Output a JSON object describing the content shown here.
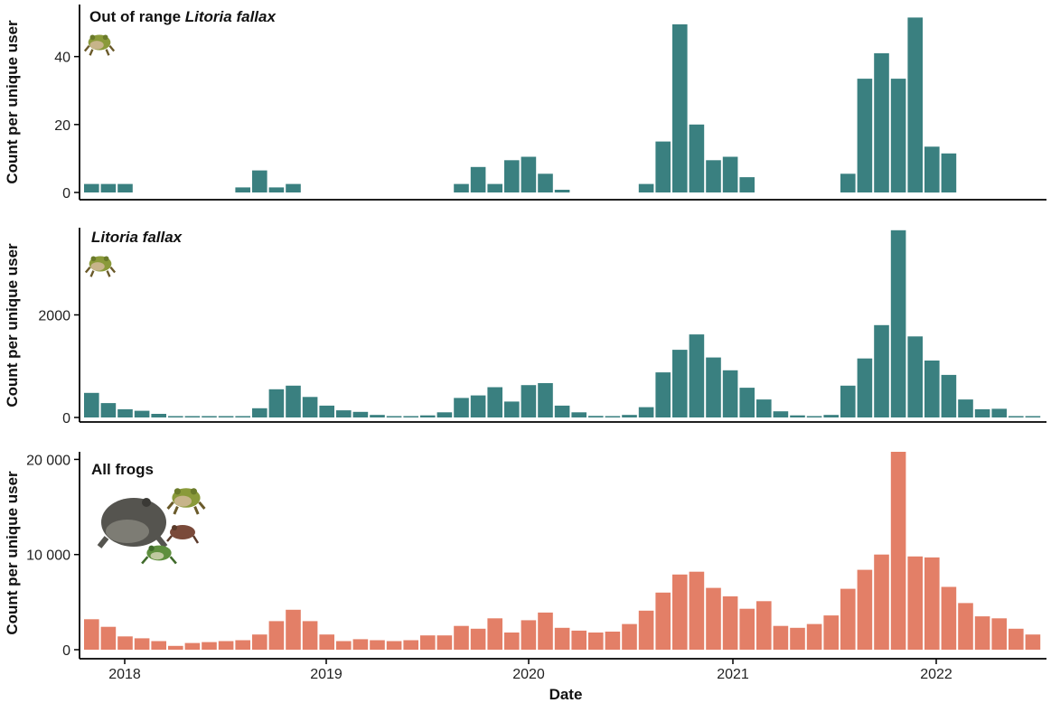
{
  "chart_data": [
    {
      "type": "bar",
      "title_prefix": "Out of range ",
      "title_italic": "Litoria fallax",
      "ylabel": "Count per unique user",
      "ylim": [
        0,
        54
      ],
      "yticks": [
        0,
        20,
        40
      ],
      "ytick_labels": [
        "0",
        "20",
        "40"
      ],
      "bar_color": "#3a8080",
      "icon": "frog-icon",
      "values": [
        2.5,
        2.5,
        2.5,
        0,
        0,
        0,
        0,
        0,
        0,
        1.5,
        6.5,
        1.5,
        2.5,
        0,
        0,
        0,
        0,
        0,
        0,
        0,
        0,
        0,
        2.5,
        7.5,
        2.5,
        9.5,
        10.5,
        5.5,
        0.8,
        0,
        0,
        0,
        0,
        2.5,
        15,
        49.5,
        20,
        9.5,
        10.5,
        4.5,
        0,
        0,
        0,
        0,
        0,
        5.5,
        33.5,
        41,
        33.5,
        51.5,
        13.5,
        11.5,
        0,
        0,
        0,
        0,
        0
      ]
    },
    {
      "type": "bar",
      "title_prefix": "",
      "title_italic": "Litoria fallax",
      "ylabel": "Count per unique user",
      "ylim": [
        0,
        3700
      ],
      "yticks": [
        0,
        2000
      ],
      "ytick_labels": [
        "0",
        "2000"
      ],
      "bar_color": "#3a8080",
      "icon": "frog-icon",
      "values": [
        480,
        280,
        160,
        130,
        70,
        10,
        10,
        10,
        10,
        20,
        180,
        550,
        620,
        400,
        230,
        140,
        110,
        50,
        20,
        20,
        40,
        100,
        380,
        430,
        590,
        310,
        630,
        670,
        230,
        100,
        30,
        20,
        50,
        200,
        880,
        1320,
        1620,
        1170,
        920,
        580,
        350,
        120,
        40,
        10,
        50,
        620,
        1150,
        1800,
        3650,
        1580,
        1110,
        830,
        350,
        160,
        170,
        10,
        10
      ]
    },
    {
      "type": "bar",
      "title_prefix": "All frogs",
      "title_italic": "",
      "ylabel": "Count per unique user",
      "ylim": [
        0,
        20800
      ],
      "yticks": [
        0,
        10000,
        20000
      ],
      "ytick_labels": [
        "0",
        "10 000",
        "20 000"
      ],
      "bar_color": "#e37f67",
      "icon": "frog-group-icon",
      "xlabel": "Date",
      "x_ticks": [
        "2018",
        "2019",
        "2020",
        "2021",
        "2022"
      ],
      "values": [
        3200,
        2400,
        1400,
        1200,
        900,
        400,
        700,
        800,
        900,
        1000,
        1600,
        3000,
        4200,
        3000,
        1600,
        900,
        1100,
        1000,
        900,
        1000,
        1500,
        1500,
        2500,
        2200,
        3300,
        1800,
        3100,
        3900,
        2300,
        2000,
        1800,
        1900,
        2700,
        4100,
        6000,
        7900,
        8200,
        6500,
        5600,
        4300,
        5100,
        2500,
        2300,
        2700,
        3600,
        6400,
        8400,
        10000,
        20800,
        9800,
        9700,
        6600,
        4900,
        3500,
        3300,
        2200,
        1600
      ]
    }
  ]
}
